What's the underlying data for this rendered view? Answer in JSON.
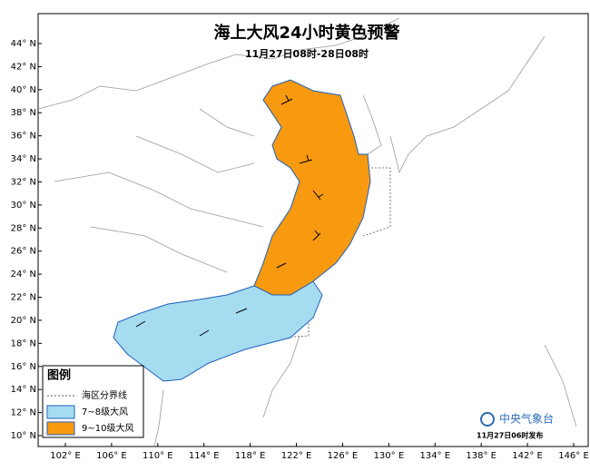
{
  "map": {
    "title": "海上大风24小时黄色预警",
    "subtitle": "11月27日08时-28日08时",
    "lat_labels": [
      "44° N",
      "42° N",
      "40° N",
      "38° N",
      "36° N",
      "34° N",
      "32° N",
      "30° N",
      "28° N",
      "26° N",
      "24° N",
      "22° N",
      "20° N",
      "18° N",
      "16° N",
      "14° N",
      "12° N",
      "10° N"
    ],
    "lon_labels": [
      "102° E",
      "106° E",
      "110° E",
      "114° E",
      "118° E",
      "122° E",
      "126° E",
      "130° E",
      "134° E",
      "138° E",
      "142° E",
      "146° E"
    ],
    "legend": {
      "title": "图例",
      "items": [
        "海区分界线",
        "7~8级大风",
        "9~10级大风"
      ]
    },
    "agency": "中央气象台",
    "issued": "11月27日06时发布"
  }
}
